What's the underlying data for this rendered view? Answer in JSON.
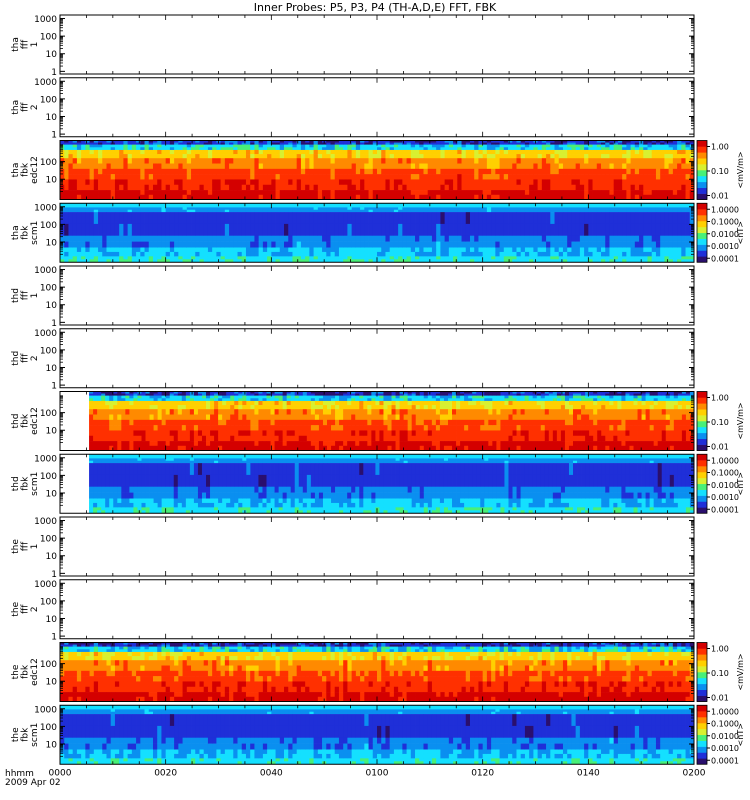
{
  "chart_data": {
    "type": "heatmap",
    "title": "Inner Probes: P5, P3, P4 (TH-A,D,E) FFT, FBK",
    "time_axis": {
      "label_line1": "hhmm",
      "label_line2": "2009 Apr 02",
      "ticks": [
        "0000",
        "0020",
        "0040",
        "0100",
        "0120",
        "0140",
        "0200"
      ],
      "range_minutes": [
        0,
        120
      ]
    },
    "y_scale": "log",
    "panels": [
      {
        "label": [
          "tha",
          "fff",
          "1"
        ],
        "kind": "empty",
        "y_ticks": [
          "1000",
          "100",
          "10",
          "1"
        ],
        "colorbar": null
      },
      {
        "label": [
          "tha",
          "fff",
          "2"
        ],
        "kind": "empty",
        "y_ticks": [
          "1000",
          "100",
          "10",
          "1"
        ],
        "colorbar": null
      },
      {
        "label": [
          "tha",
          "fbk",
          "edc12"
        ],
        "kind": "spectrogram-e",
        "data_start_min": 0,
        "y_ticks": [
          "100",
          "10"
        ],
        "colorbar": {
          "unit": "<mV/m>",
          "ticks": [
            "1.00",
            "0.10",
            "0.01"
          ]
        }
      },
      {
        "label": [
          "tha",
          "fbk",
          "scm1"
        ],
        "kind": "spectrogram-b",
        "data_start_min": 0,
        "y_ticks": [
          "1000",
          "100",
          "10"
        ],
        "colorbar": {
          "unit": "<nT>",
          "ticks": [
            "1.0000",
            "0.1000",
            "0.0100",
            "0.0010",
            "0.0001"
          ]
        }
      },
      {
        "label": [
          "thd",
          "fff",
          "1"
        ],
        "kind": "empty",
        "y_ticks": [
          "1000",
          "100",
          "10",
          "1"
        ],
        "colorbar": null
      },
      {
        "label": [
          "thd",
          "fff",
          "2"
        ],
        "kind": "empty",
        "y_ticks": [
          "1000",
          "100",
          "10",
          "1"
        ],
        "colorbar": null
      },
      {
        "label": [
          "thd",
          "fbk",
          "edc12"
        ],
        "kind": "spectrogram-e",
        "data_start_min": 5.5,
        "y_ticks": [
          "100",
          "10"
        ],
        "colorbar": {
          "unit": "<mV/m>",
          "ticks": [
            "1.00",
            "0.10",
            "0.01"
          ]
        }
      },
      {
        "label": [
          "thd",
          "fbk",
          "scm1"
        ],
        "kind": "spectrogram-b",
        "data_start_min": 5.5,
        "y_ticks": [
          "1000",
          "100",
          "10"
        ],
        "colorbar": {
          "unit": "<nT>",
          "ticks": [
            "1.0000",
            "0.1000",
            "0.0100",
            "0.0010",
            "0.0001"
          ]
        }
      },
      {
        "label": [
          "the",
          "fff",
          "1"
        ],
        "kind": "empty",
        "y_ticks": [
          "1000",
          "100",
          "10",
          "1"
        ],
        "colorbar": null
      },
      {
        "label": [
          "the",
          "fff",
          "2"
        ],
        "kind": "empty",
        "y_ticks": [
          "1000",
          "100",
          "10",
          "1"
        ],
        "colorbar": null
      },
      {
        "label": [
          "the",
          "fbk",
          "edc12"
        ],
        "kind": "spectrogram-e",
        "data_start_min": 0,
        "y_ticks": [
          "100",
          "10"
        ],
        "colorbar": {
          "unit": "<mV/m>",
          "ticks": [
            "1.00",
            "0.10",
            "0.01"
          ]
        }
      },
      {
        "label": [
          "the",
          "fbk",
          "scm1"
        ],
        "kind": "spectrogram-b",
        "data_start_min": 0,
        "y_ticks": [
          "1000",
          "100",
          "10"
        ],
        "colorbar": {
          "unit": "<nT>",
          "ticks": [
            "1.0000",
            "0.1000",
            "0.0100",
            "0.0010",
            "0.0001"
          ]
        }
      }
    ],
    "colormap": [
      "#2a0f6e",
      "#1f2fd8",
      "#0a8ff0",
      "#14e0ff",
      "#48f078",
      "#d8f030",
      "#ffd000",
      "#ff8a00",
      "#ff3000",
      "#d40000"
    ]
  }
}
